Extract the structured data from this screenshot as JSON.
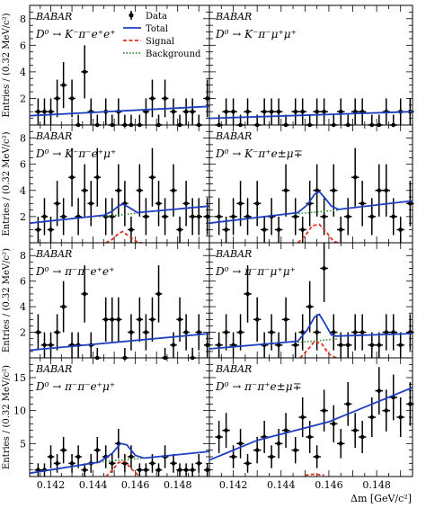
{
  "chart_data": [
    {
      "type": "scatter",
      "panel_row": 0,
      "panel_col": 0,
      "experiment": "BABAR",
      "decay": "D⁰ → K⁻π⁻e⁺e⁺",
      "xlim": [
        0.141,
        0.1495
      ],
      "ylim": [
        0,
        9
      ],
      "yticks": [
        2,
        4,
        6,
        8
      ],
      "x": [
        0.1414,
        0.1417,
        0.142,
        0.1423,
        0.1426,
        0.143,
        0.1433,
        0.1436,
        0.1439,
        0.1442,
        0.1446,
        0.1449,
        0.1452,
        0.1455,
        0.1458,
        0.1462,
        0.1465,
        0.1468,
        0.1471,
        0.1474,
        0.1478,
        0.1481,
        0.1484,
        0.1487,
        0.149,
        0.1494
      ],
      "y": [
        1,
        1,
        1,
        2,
        3,
        2,
        0,
        4,
        1,
        0,
        1,
        0,
        1,
        0,
        0,
        0,
        1,
        2,
        0,
        2,
        1,
        0,
        1,
        1,
        0,
        2
      ],
      "total": [
        [
          0.141,
          0.7
        ],
        [
          0.1495,
          1.4
        ]
      ],
      "signal": [],
      "background": []
    },
    {
      "type": "scatter",
      "panel_row": 0,
      "panel_col": 1,
      "experiment": "BABAR",
      "decay": "D⁰ → K⁻π⁻μ⁺μ⁺",
      "xlim": [
        0.141,
        0.1495
      ],
      "ylim": [
        0,
        9
      ],
      "yticks": [
        2,
        4,
        6,
        8
      ],
      "x": [
        0.1414,
        0.1417,
        0.142,
        0.1423,
        0.1426,
        0.143,
        0.1433,
        0.1436,
        0.1439,
        0.1442,
        0.1446,
        0.1449,
        0.1452,
        0.1455,
        0.1458,
        0.1462,
        0.1465,
        0.1468,
        0.1471,
        0.1474,
        0.1478,
        0.1481,
        0.1484,
        0.1487,
        0.149,
        0.1494
      ],
      "y": [
        0,
        1,
        1,
        0,
        1,
        0,
        1,
        1,
        1,
        0,
        1,
        1,
        0,
        1,
        1,
        0,
        1,
        0,
        1,
        1,
        0,
        0,
        1,
        0,
        1,
        1
      ],
      "total": [
        [
          0.141,
          0.5
        ],
        [
          0.1495,
          1.0
        ]
      ],
      "signal": [],
      "background": []
    },
    {
      "type": "scatter",
      "panel_row": 1,
      "panel_col": 0,
      "experiment": "BABAR",
      "decay": "D⁰ → K⁻π⁻e⁺μ⁺",
      "xlim": [
        0.141,
        0.1495
      ],
      "ylim": [
        0,
        9
      ],
      "yticks": [
        2,
        4,
        6,
        8
      ],
      "x": [
        0.1414,
        0.1417,
        0.142,
        0.1423,
        0.1426,
        0.143,
        0.1433,
        0.1436,
        0.1439,
        0.1442,
        0.1446,
        0.1449,
        0.1452,
        0.1455,
        0.1458,
        0.1462,
        0.1465,
        0.1468,
        0.1471,
        0.1474,
        0.1478,
        0.1481,
        0.1484,
        0.1487,
        0.149,
        0.1494
      ],
      "y": [
        1,
        2,
        1,
        3,
        2,
        5,
        2,
        4,
        3,
        5,
        2,
        2,
        4,
        3,
        1,
        4,
        2,
        5,
        3,
        2,
        4,
        1,
        3,
        2,
        2,
        2
      ],
      "total": [
        [
          0.141,
          1.5
        ],
        [
          0.1445,
          2.1
        ],
        [
          0.1449,
          2.4
        ],
        [
          0.1452,
          2.8
        ],
        [
          0.1454,
          2.95
        ],
        [
          0.1457,
          2.7
        ],
        [
          0.1461,
          2.3
        ],
        [
          0.1495,
          2.8
        ]
      ],
      "signal": [
        [
          0.1446,
          0
        ],
        [
          0.1449,
          0.25
        ],
        [
          0.1452,
          0.7
        ],
        [
          0.1454,
          0.85
        ],
        [
          0.1457,
          0.5
        ],
        [
          0.1461,
          0.05
        ],
        [
          0.1463,
          0
        ]
      ],
      "background": [
        [
          0.1443,
          2.0
        ],
        [
          0.1451,
          2.1
        ],
        [
          0.1457,
          2.2
        ],
        [
          0.1462,
          2.3
        ]
      ]
    },
    {
      "type": "scatter",
      "panel_row": 1,
      "panel_col": 1,
      "experiment": "BABAR",
      "decay": "D⁰ → K⁻π⁺e±μ∓",
      "xlim": [
        0.141,
        0.1495
      ],
      "ylim": [
        0,
        9
      ],
      "yticks": [
        2,
        4,
        6,
        8
      ],
      "x": [
        0.1414,
        0.1417,
        0.142,
        0.1423,
        0.1426,
        0.143,
        0.1433,
        0.1436,
        0.1439,
        0.1442,
        0.1446,
        0.1449,
        0.1452,
        0.1455,
        0.1458,
        0.1462,
        0.1465,
        0.1468,
        0.1471,
        0.1474,
        0.1478,
        0.1481,
        0.1484,
        0.1487,
        0.149,
        0.1494
      ],
      "y": [
        2,
        1,
        2,
        3,
        2,
        3,
        1,
        2,
        1,
        4,
        2,
        1,
        3,
        4,
        2,
        4,
        1,
        2,
        5,
        3,
        2,
        4,
        4,
        2,
        1,
        3
      ],
      "total": [
        [
          0.141,
          1.5
        ],
        [
          0.1447,
          2.3
        ],
        [
          0.1451,
          2.9
        ],
        [
          0.1454,
          3.7
        ],
        [
          0.1456,
          3.9
        ],
        [
          0.1458,
          3.5
        ],
        [
          0.1461,
          2.8
        ],
        [
          0.1464,
          2.55
        ],
        [
          0.1495,
          3.2
        ]
      ],
      "signal": [
        [
          0.1447,
          0
        ],
        [
          0.145,
          0.5
        ],
        [
          0.1453,
          1.3
        ],
        [
          0.1456,
          1.4
        ],
        [
          0.1459,
          0.8
        ],
        [
          0.1462,
          0.1
        ],
        [
          0.1464,
          0
        ]
      ],
      "background": [
        [
          0.1446,
          2.2
        ],
        [
          0.1452,
          2.3
        ],
        [
          0.1458,
          2.4
        ],
        [
          0.1464,
          2.5
        ]
      ]
    },
    {
      "type": "scatter",
      "panel_row": 2,
      "panel_col": 0,
      "experiment": "BABAR",
      "decay": "D⁰ → π⁻π⁻e⁺e⁺",
      "xlim": [
        0.141,
        0.1495
      ],
      "ylim": [
        0,
        9
      ],
      "yticks": [
        2,
        4,
        6,
        8
      ],
      "x": [
        0.1414,
        0.1417,
        0.142,
        0.1423,
        0.1426,
        0.143,
        0.1433,
        0.1436,
        0.1439,
        0.1442,
        0.1446,
        0.1449,
        0.1452,
        0.1455,
        0.1458,
        0.1462,
        0.1465,
        0.1468,
        0.1471,
        0.1474,
        0.1478,
        0.1481,
        0.1484,
        0.1487,
        0.149,
        0.1494
      ],
      "y": [
        2,
        1,
        1,
        2,
        4,
        1,
        1,
        5,
        1,
        0,
        3,
        3,
        3,
        0,
        2,
        3,
        2,
        3,
        5,
        0,
        1,
        3,
        2,
        0,
        2,
        1
      ],
      "total": [
        [
          0.141,
          0.6
        ],
        [
          0.1495,
          1.9
        ]
      ],
      "signal": [],
      "background": []
    },
    {
      "type": "scatter",
      "panel_row": 2,
      "panel_col": 1,
      "experiment": "BABAR",
      "decay": "D⁰ → π⁻π⁻μ⁺μ⁺",
      "xlim": [
        0.141,
        0.1495
      ],
      "ylim": [
        0,
        9
      ],
      "yticks": [
        2,
        4,
        6,
        8
      ],
      "x": [
        0.1414,
        0.1417,
        0.142,
        0.1423,
        0.1426,
        0.143,
        0.1433,
        0.1436,
        0.1439,
        0.1442,
        0.1446,
        0.1449,
        0.1452,
        0.1455,
        0.1458,
        0.1462,
        0.1465,
        0.1468,
        0.1471,
        0.1474,
        0.1478,
        0.1481,
        0.1484,
        0.1487,
        0.149,
        0.1494
      ],
      "y": [
        1,
        2,
        1,
        2,
        5,
        3,
        1,
        2,
        1,
        3,
        1,
        2,
        4,
        2,
        7,
        2,
        1,
        1,
        2,
        2,
        1,
        1,
        2,
        2,
        1,
        2
      ],
      "total": [
        [
          0.141,
          0.7
        ],
        [
          0.1447,
          1.3
        ],
        [
          0.1451,
          2.2
        ],
        [
          0.1454,
          3.2
        ],
        [
          0.1456,
          3.4
        ],
        [
          0.1458,
          2.8
        ],
        [
          0.1461,
          1.8
        ],
        [
          0.1463,
          1.7
        ],
        [
          0.1495,
          1.9
        ]
      ],
      "signal": [
        [
          0.1448,
          0
        ],
        [
          0.1451,
          0.6
        ],
        [
          0.1454,
          1.3
        ],
        [
          0.1457,
          1.1
        ],
        [
          0.146,
          0.3
        ],
        [
          0.1463,
          0
        ]
      ],
      "background": [
        [
          0.1447,
          1.2
        ],
        [
          0.1453,
          1.3
        ],
        [
          0.1459,
          1.4
        ],
        [
          0.1464,
          1.5
        ]
      ]
    },
    {
      "type": "scatter",
      "panel_row": 3,
      "panel_col": 0,
      "experiment": "BABAR",
      "decay": "D⁰ → π⁻π⁻e⁺μ⁺",
      "xlim": [
        0.141,
        0.1495
      ],
      "ylim": [
        0,
        18
      ],
      "yticks": [
        5,
        10,
        15
      ],
      "x": [
        0.1414,
        0.1417,
        0.142,
        0.1423,
        0.1426,
        0.143,
        0.1433,
        0.1436,
        0.1439,
        0.1442,
        0.1446,
        0.1449,
        0.1452,
        0.1455,
        0.1458,
        0.1462,
        0.1465,
        0.1468,
        0.1471,
        0.1474,
        0.1478,
        0.1481,
        0.1484,
        0.1487,
        0.149,
        0.1494
      ],
      "y": [
        1,
        1,
        3,
        2,
        4,
        2,
        3,
        1,
        2,
        4,
        3,
        2,
        5,
        2,
        3,
        1,
        1,
        2,
        1,
        3,
        2,
        1,
        1,
        1,
        2,
        1
      ],
      "total": [
        [
          0.141,
          0.5
        ],
        [
          0.1443,
          2.2
        ],
        [
          0.1449,
          3.5
        ],
        [
          0.1453,
          5.0
        ],
        [
          0.1456,
          4.8
        ],
        [
          0.146,
          3.2
        ],
        [
          0.1464,
          2.8
        ],
        [
          0.1495,
          3.8
        ]
      ],
      "signal": [
        [
          0.1446,
          0
        ],
        [
          0.1449,
          0.9
        ],
        [
          0.1452,
          2.1
        ],
        [
          0.1455,
          2.3
        ],
        [
          0.1458,
          1.2
        ],
        [
          0.1462,
          0
        ]
      ],
      "background": [
        [
          0.1443,
          2.2
        ],
        [
          0.145,
          2.4
        ],
        [
          0.1457,
          2.6
        ],
        [
          0.1464,
          2.8
        ]
      ]
    },
    {
      "type": "scatter",
      "panel_row": 3,
      "panel_col": 1,
      "experiment": "BABAR",
      "decay": "D⁰ → π⁻π⁺e±μ∓",
      "xlim": [
        0.141,
        0.1495
      ],
      "ylim": [
        0,
        18
      ],
      "yticks": [
        5,
        10,
        15
      ],
      "x": [
        0.1414,
        0.1417,
        0.142,
        0.1423,
        0.1426,
        0.143,
        0.1433,
        0.1436,
        0.1439,
        0.1442,
        0.1446,
        0.1449,
        0.1452,
        0.1455,
        0.1458,
        0.1462,
        0.1465,
        0.1468,
        0.1471,
        0.1474,
        0.1478,
        0.1481,
        0.1484,
        0.1487,
        0.149,
        0.1494
      ],
      "y": [
        6,
        7,
        3,
        5,
        2,
        4,
        6,
        3,
        5,
        7,
        4,
        9,
        6,
        3,
        10,
        8,
        5,
        11,
        7,
        6,
        9,
        13,
        10,
        12,
        9,
        11
      ],
      "total": [
        [
          0.141,
          2.5
        ],
        [
          0.143,
          5.5
        ],
        [
          0.146,
          8.3
        ],
        [
          0.1495,
          13.5
        ]
      ],
      "signal": [
        [
          0.145,
          0.2
        ],
        [
          0.1454,
          0.35
        ],
        [
          0.1458,
          0.2
        ]
      ],
      "background": []
    }
  ],
  "figure": {
    "xlabel": "Δm [GeV/c²]",
    "ylabel": "Entries / (0.32 MeV/c²)",
    "xtick_labels": [
      "0.142",
      "0.144",
      "0.146",
      "0.148"
    ],
    "xtick_values": [
      0.142,
      0.144,
      0.146,
      0.148
    ],
    "experiment_label": "BABAR",
    "legend": [
      {
        "label": "Data",
        "style": "marker"
      },
      {
        "label": "Total",
        "style": "solid",
        "color": "#1f3fbf"
      },
      {
        "label": "Signal",
        "style": "dashed",
        "color": "#e0301e"
      },
      {
        "label": "Background",
        "style": "dotted",
        "color": "#2e8b2e"
      }
    ],
    "colors": {
      "total": "#1f3fbf",
      "signal": "#e0301e",
      "background": "#2e8b2e",
      "data": "#000000"
    }
  }
}
